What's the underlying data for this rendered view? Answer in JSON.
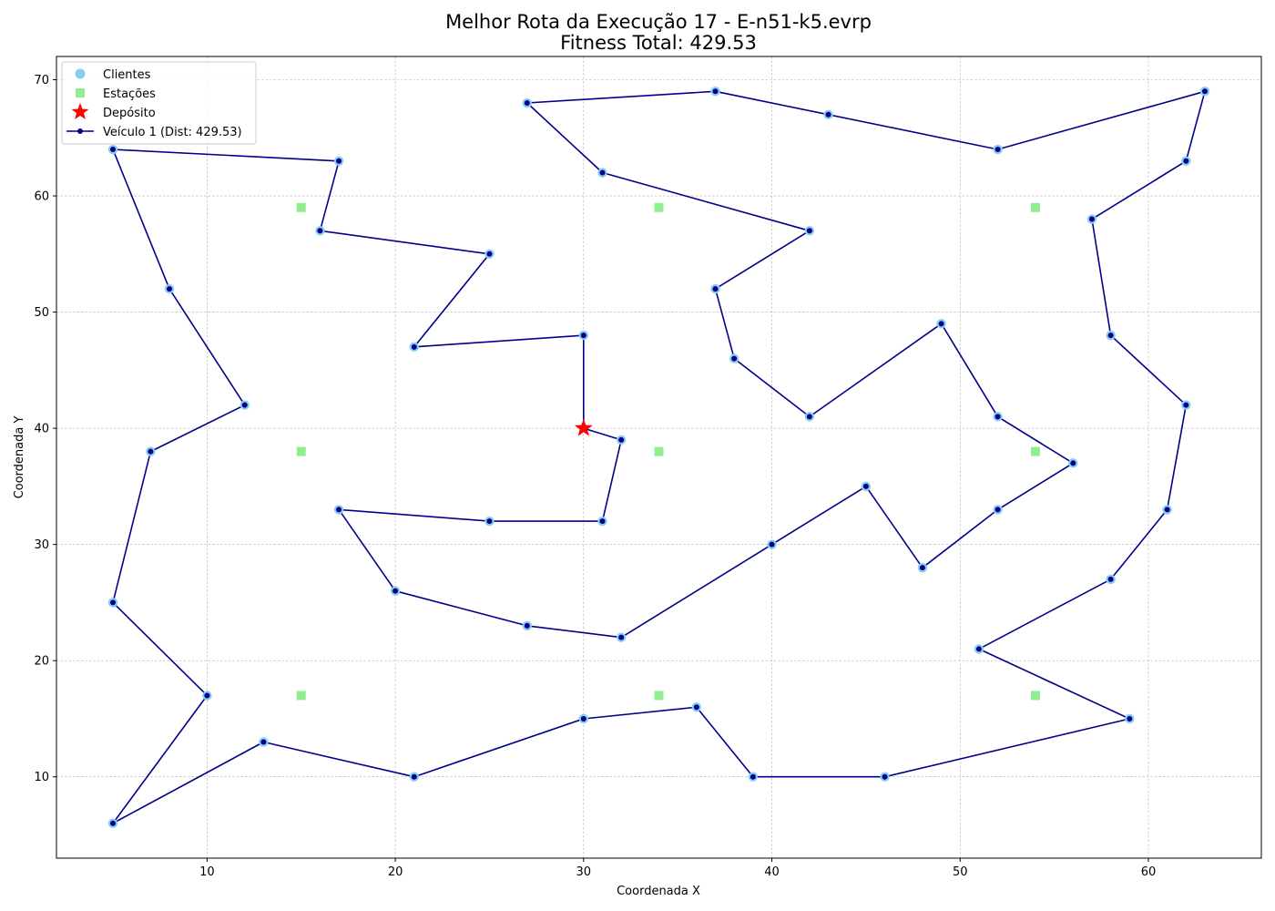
{
  "chart_data": {
    "type": "scatter",
    "title": "Melhor Rota da Execução 17 - E-n51-k5.evrp",
    "subtitle": "Fitness Total: 429.53",
    "xlabel": "Coordenada X",
    "ylabel": "Coordenada Y",
    "xlim": [
      2,
      66
    ],
    "ylim": [
      3,
      72
    ],
    "xticks": [
      10,
      20,
      30,
      40,
      50,
      60
    ],
    "yticks": [
      10,
      20,
      30,
      40,
      50,
      60,
      70
    ],
    "grid": true,
    "legend_position": "top-left",
    "colors": {
      "clients": "#87ceeb",
      "stations": "#90ee90",
      "depot": "#ff0000",
      "route": "#00008b"
    },
    "legend": [
      {
        "key": "clients",
        "label": "Clientes"
      },
      {
        "key": "stations",
        "label": "Estações"
      },
      {
        "key": "depot",
        "label": "Depósito"
      },
      {
        "key": "route",
        "label": "Veículo 1 (Dist: 429.53)"
      }
    ],
    "depot": {
      "x": 30,
      "y": 40
    },
    "stations": [
      {
        "x": 15,
        "y": 59
      },
      {
        "x": 34,
        "y": 59
      },
      {
        "x": 54,
        "y": 59
      },
      {
        "x": 15,
        "y": 38
      },
      {
        "x": 34,
        "y": 38
      },
      {
        "x": 54,
        "y": 38
      },
      {
        "x": 15,
        "y": 17
      },
      {
        "x": 34,
        "y": 17
      },
      {
        "x": 54,
        "y": 17
      }
    ],
    "route": [
      [
        30,
        40
      ],
      [
        32,
        39
      ],
      [
        31,
        32
      ],
      [
        25,
        32
      ],
      [
        17,
        33
      ],
      [
        20,
        26
      ],
      [
        27,
        23
      ],
      [
        32,
        22
      ],
      [
        40,
        30
      ],
      [
        45,
        35
      ],
      [
        48,
        28
      ],
      [
        52,
        33
      ],
      [
        56,
        37
      ],
      [
        52,
        41
      ],
      [
        49,
        49
      ],
      [
        42,
        41
      ],
      [
        38,
        46
      ],
      [
        37,
        52
      ],
      [
        42,
        57
      ],
      [
        31,
        62
      ],
      [
        27,
        68
      ],
      [
        37,
        69
      ],
      [
        43,
        67
      ],
      [
        52,
        64
      ],
      [
        63,
        69
      ],
      [
        62,
        63
      ],
      [
        57,
        58
      ],
      [
        58,
        48
      ],
      [
        62,
        42
      ],
      [
        61,
        33
      ],
      [
        58,
        27
      ],
      [
        51,
        21
      ],
      [
        59,
        15
      ],
      [
        46,
        10
      ],
      [
        39,
        10
      ],
      [
        36,
        16
      ],
      [
        30,
        15
      ],
      [
        21,
        10
      ],
      [
        13,
        13
      ],
      [
        5,
        6
      ],
      [
        10,
        17
      ],
      [
        5,
        25
      ],
      [
        7,
        38
      ],
      [
        12,
        42
      ],
      [
        8,
        52
      ],
      [
        5,
        64
      ],
      [
        17,
        63
      ],
      [
        16,
        57
      ],
      [
        25,
        55
      ],
      [
        21,
        47
      ],
      [
        30,
        48
      ],
      [
        30,
        40
      ]
    ]
  }
}
